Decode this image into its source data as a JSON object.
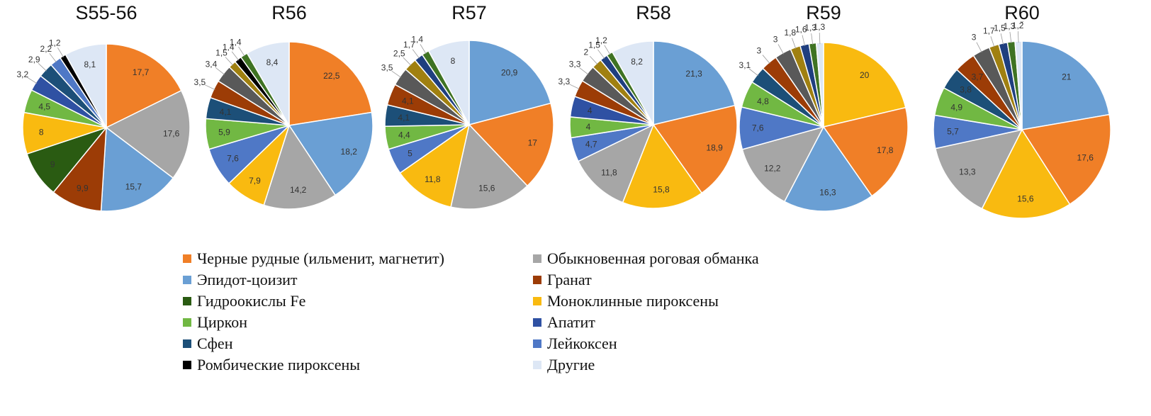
{
  "categories": [
    {
      "key": "ore",
      "label": "Черные рудные (ильменит, магнетит)",
      "color": "#F07F27"
    },
    {
      "key": "hornblende",
      "label": "Обыкновенная роговая обманка",
      "color": "#A6A6A6"
    },
    {
      "key": "epidote",
      "label": "Эпидот-цоизит",
      "color": "#6A9FD4"
    },
    {
      "key": "garnet",
      "label": "Гранат",
      "color": "#9C3C06"
    },
    {
      "key": "fe_hydroxide",
      "label": "Гидроокислы Fe",
      "color": "#2A5B12"
    },
    {
      "key": "cpx",
      "label": "Моноклинные пироксены",
      "color": "#F9BA10"
    },
    {
      "key": "zircon",
      "label": "Циркон",
      "color": "#71B843"
    },
    {
      "key": "apatite",
      "label": "Апатит",
      "color": "#2F51A3"
    },
    {
      "key": "sphene",
      "label": "Сфен",
      "color": "#1C4F78"
    },
    {
      "key": "leucoxene",
      "label": "Лейкоксен",
      "color": "#4F78C6"
    },
    {
      "key": "opx",
      "label": "Ромбические пироксены",
      "color": "#000000"
    },
    {
      "key": "other",
      "label": "Другие",
      "color": "#DDE7F5"
    },
    {
      "key": "dark_gray",
      "label": "",
      "color": "#595959"
    },
    {
      "key": "olive",
      "label": "",
      "color": "#A08010"
    },
    {
      "key": "navy",
      "label": "",
      "color": "#1F3F7F"
    },
    {
      "key": "dk_green",
      "label": "",
      "color": "#3F7323"
    }
  ],
  "chart_data": [
    {
      "type": "pie",
      "title": "S55-56",
      "slices": [
        {
          "cat": "ore",
          "value": 17.7,
          "label": "17,7"
        },
        {
          "cat": "hornblende",
          "value": 17.6,
          "label": "17,6"
        },
        {
          "cat": "epidote",
          "value": 15.7,
          "label": "15,7"
        },
        {
          "cat": "garnet",
          "value": 9.9,
          "label": "9,9"
        },
        {
          "cat": "fe_hydroxide",
          "value": 9,
          "label": "9"
        },
        {
          "cat": "cpx",
          "value": 8,
          "label": "8"
        },
        {
          "cat": "zircon",
          "value": 4.5,
          "label": "4,5"
        },
        {
          "cat": "apatite",
          "value": 3.2,
          "label": "3,2"
        },
        {
          "cat": "sphene",
          "value": 2.9,
          "label": "2,9"
        },
        {
          "cat": "leucoxene",
          "value": 2.2,
          "label": "2,2"
        },
        {
          "cat": "opx",
          "value": 1.2,
          "label": "1,2"
        },
        {
          "cat": "other",
          "value": 8.1,
          "label": "8,1"
        }
      ]
    },
    {
      "type": "pie",
      "title": "R56",
      "slices": [
        {
          "cat": "ore",
          "value": 22.5,
          "label": "22,5"
        },
        {
          "cat": "epidote",
          "value": 18.2,
          "label": "18,2"
        },
        {
          "cat": "hornblende",
          "value": 14.2,
          "label": "14,2"
        },
        {
          "cat": "cpx",
          "value": 7.9,
          "label": "7,9"
        },
        {
          "cat": "leucoxene",
          "value": 7.6,
          "label": "7,6"
        },
        {
          "cat": "zircon",
          "value": 5.9,
          "label": "5,9"
        },
        {
          "cat": "sphene",
          "value": 4.1,
          "label": "4,1"
        },
        {
          "cat": "garnet",
          "value": 3.5,
          "label": "3,5"
        },
        {
          "cat": "dark_gray",
          "value": 3.4,
          "label": "3,4"
        },
        {
          "cat": "olive",
          "value": 1.5,
          "label": "1,5"
        },
        {
          "cat": "opx",
          "value": 1.4,
          "label": "1,4"
        },
        {
          "cat": "dk_green",
          "value": 1.4,
          "label": "1,4"
        },
        {
          "cat": "other",
          "value": 8.4,
          "label": "8,4"
        }
      ]
    },
    {
      "type": "pie",
      "title": "R57",
      "slices": [
        {
          "cat": "epidote",
          "value": 20.9,
          "label": "20,9"
        },
        {
          "cat": "ore",
          "value": 17,
          "label": "17"
        },
        {
          "cat": "hornblende",
          "value": 15.6,
          "label": "15,6"
        },
        {
          "cat": "cpx",
          "value": 11.8,
          "label": "11,8"
        },
        {
          "cat": "leucoxene",
          "value": 5,
          "label": "5"
        },
        {
          "cat": "zircon",
          "value": 4.4,
          "label": "4,4"
        },
        {
          "cat": "sphene",
          "value": 4.1,
          "label": "4,1"
        },
        {
          "cat": "garnet",
          "value": 4.1,
          "label": "4,1"
        },
        {
          "cat": "dark_gray",
          "value": 3.5,
          "label": "3,5"
        },
        {
          "cat": "olive",
          "value": 2.5,
          "label": "2,5"
        },
        {
          "cat": "navy",
          "value": 1.7,
          "label": "1,7"
        },
        {
          "cat": "dk_green",
          "value": 1.4,
          "label": "1,4"
        },
        {
          "cat": "other",
          "value": 8,
          "label": "8"
        }
      ]
    },
    {
      "type": "pie",
      "title": "R58",
      "slices": [
        {
          "cat": "epidote",
          "value": 21.3,
          "label": "21,3"
        },
        {
          "cat": "ore",
          "value": 18.9,
          "label": "18,9"
        },
        {
          "cat": "cpx",
          "value": 15.8,
          "label": "15,8"
        },
        {
          "cat": "hornblende",
          "value": 11.8,
          "label": "11,8"
        },
        {
          "cat": "leucoxene",
          "value": 4.7,
          "label": "4,7"
        },
        {
          "cat": "zircon",
          "value": 4,
          "label": "4"
        },
        {
          "cat": "apatite",
          "value": 4,
          "label": "4"
        },
        {
          "cat": "garnet",
          "value": 3.3,
          "label": "3,3"
        },
        {
          "cat": "dark_gray",
          "value": 3.3,
          "label": "3,3"
        },
        {
          "cat": "olive",
          "value": 2,
          "label": "2"
        },
        {
          "cat": "navy",
          "value": 1.5,
          "label": "1,5"
        },
        {
          "cat": "dk_green",
          "value": 1.2,
          "label": "1,2"
        },
        {
          "cat": "other",
          "value": 8.2,
          "label": "8,2"
        }
      ]
    },
    {
      "type": "pie",
      "title": "R59",
      "slices": [
        {
          "cat": "cpx",
          "value": 20,
          "label": "20"
        },
        {
          "cat": "ore",
          "value": 17.8,
          "label": "17,8"
        },
        {
          "cat": "epidote",
          "value": 16.3,
          "label": "16,3"
        },
        {
          "cat": "hornblende",
          "value": 12.2,
          "label": "12,2"
        },
        {
          "cat": "leucoxene",
          "value": 7.6,
          "label": "7,6"
        },
        {
          "cat": "zircon",
          "value": 4.8,
          "label": "4,8"
        },
        {
          "cat": "sphene",
          "value": 3.1,
          "label": "3,1"
        },
        {
          "cat": "garnet",
          "value": 3,
          "label": "3"
        },
        {
          "cat": "dark_gray",
          "value": 3,
          "label": "3"
        },
        {
          "cat": "olive",
          "value": 1.8,
          "label": "1,8"
        },
        {
          "cat": "navy",
          "value": 1.6,
          "label": "1,6"
        },
        {
          "cat": "dk_green",
          "value": 1.3,
          "label": "1,3"
        },
        {
          "cat": "other",
          "value": 1.3,
          "label": "1,3"
        }
      ]
    },
    {
      "type": "pie",
      "title": "R60",
      "top_note": "ˇ",
      "slices": [
        {
          "cat": "epidote",
          "value": 21,
          "label": "21"
        },
        {
          "cat": "ore",
          "value": 17.6,
          "label": "17,6"
        },
        {
          "cat": "cpx",
          "value": 15.6,
          "label": "15,6"
        },
        {
          "cat": "hornblende",
          "value": 13.3,
          "label": "13,3"
        },
        {
          "cat": "leucoxene",
          "value": 5.7,
          "label": "5,7"
        },
        {
          "cat": "zircon",
          "value": 4.9,
          "label": "4,9"
        },
        {
          "cat": "sphene",
          "value": 3.8,
          "label": "3,8"
        },
        {
          "cat": "garnet",
          "value": 3.7,
          "label": "3,7"
        },
        {
          "cat": "dark_gray",
          "value": 3,
          "label": "3"
        },
        {
          "cat": "olive",
          "value": 1.7,
          "label": "1,7"
        },
        {
          "cat": "navy",
          "value": 1.5,
          "label": "1,5"
        },
        {
          "cat": "dk_green",
          "value": 1.3,
          "label": "1,3"
        },
        {
          "cat": "other",
          "value": 1.2,
          "label": "1,2"
        }
      ]
    }
  ],
  "legend": {
    "items": [
      "ore",
      "hornblende",
      "epidote",
      "garnet",
      "fe_hydroxide",
      "cpx",
      "zircon",
      "apatite",
      "sphene",
      "leucoxene",
      "opx",
      "other"
    ]
  }
}
